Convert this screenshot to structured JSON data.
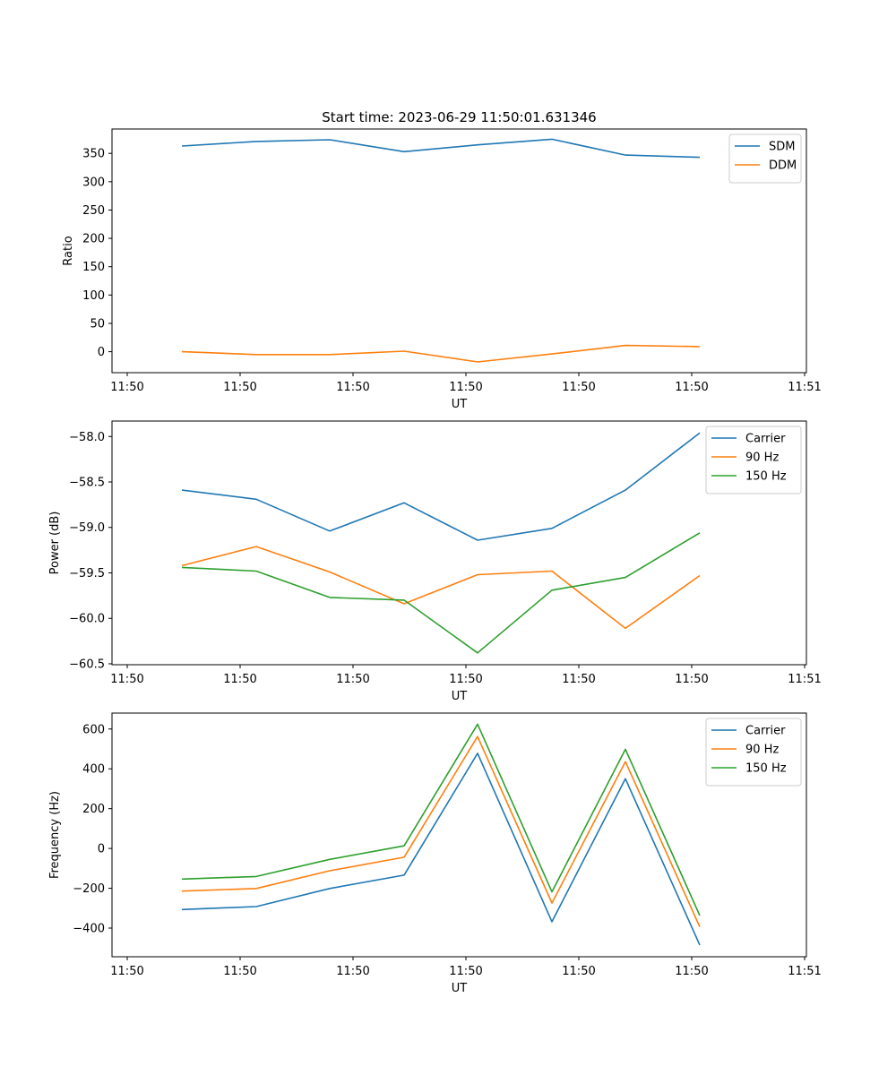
{
  "title": "Start time: 2023-06-29 11:50:01.631346",
  "colors": {
    "blue": "#1f77b4",
    "orange": "#ff7f0e",
    "green": "#2ca02c"
  },
  "chart_data": [
    {
      "type": "line",
      "title": "Start time: 2023-06-29 11:50:01.631346",
      "xlabel": "UT",
      "ylabel": "Ratio",
      "xtick_labels": [
        "11:50",
        "11:50",
        "11:50",
        "11:50",
        "11:50",
        "11:50",
        "11:50",
        "11:51"
      ],
      "ytick_values": [
        0,
        50,
        100,
        150,
        200,
        250,
        300,
        350
      ],
      "ytick_labels": [
        "0",
        "50",
        "100",
        "150",
        "200",
        "250",
        "300",
        "350"
      ],
      "ylim": [
        -37,
        393
      ],
      "legend_position": "upper right",
      "grid": false,
      "series": [
        {
          "name": "SDM",
          "color": "#1f77b4",
          "values": [
            363,
            371,
            374,
            353,
            365,
            375,
            347,
            343
          ]
        },
        {
          "name": "DDM",
          "color": "#ff7f0e",
          "values": [
            0,
            -5,
            -5,
            1,
            -18,
            -4,
            11,
            9
          ]
        }
      ]
    },
    {
      "type": "line",
      "title": "",
      "xlabel": "UT",
      "ylabel": "Power (dB)",
      "xtick_labels": [
        "11:50",
        "11:50",
        "11:50",
        "11:50",
        "11:50",
        "11:50",
        "11:50",
        "11:51"
      ],
      "ytick_values": [
        -58.0,
        -58.5,
        -59.0,
        -59.5,
        -60.0,
        -60.5
      ],
      "ytick_labels": [
        "−58.0",
        "−58.5",
        "−59.0",
        "−59.5",
        "−60.0",
        "−60.5"
      ],
      "ylim": [
        -60.51,
        -57.83
      ],
      "legend_position": "upper right",
      "grid": false,
      "series": [
        {
          "name": "Carrier",
          "color": "#1f77b4",
          "values": [
            -58.59,
            -58.69,
            -59.04,
            -58.73,
            -59.14,
            -59.01,
            -58.59,
            -57.96
          ]
        },
        {
          "name": "90 Hz",
          "color": "#ff7f0e",
          "values": [
            -59.42,
            -59.21,
            -59.49,
            -59.84,
            -59.52,
            -59.48,
            -60.11,
            -59.53
          ]
        },
        {
          "name": "150 Hz",
          "color": "#2ca02c",
          "values": [
            -59.44,
            -59.48,
            -59.77,
            -59.8,
            -60.38,
            -59.69,
            -59.55,
            -59.06
          ]
        }
      ]
    },
    {
      "type": "line",
      "title": "",
      "xlabel": "UT",
      "ylabel": "Frequency (Hz)",
      "xtick_labels": [
        "11:50",
        "11:50",
        "11:50",
        "11:50",
        "11:50",
        "11:50",
        "11:50",
        "11:51"
      ],
      "ytick_values": [
        600,
        400,
        200,
        0,
        -200,
        -400
      ],
      "ytick_labels": [
        "600",
        "400",
        "200",
        "0",
        "−200",
        "−400"
      ],
      "ylim": [
        -544,
        680
      ],
      "legend_position": "upper right",
      "grid": false,
      "series": [
        {
          "name": "Carrier",
          "color": "#1f77b4",
          "values": [
            -307,
            -292,
            -201,
            -134,
            478,
            -368,
            350,
            -485
          ]
        },
        {
          "name": "90 Hz",
          "color": "#ff7f0e",
          "values": [
            -214,
            -201,
            -112,
            -44,
            562,
            -274,
            436,
            -394
          ]
        },
        {
          "name": "150 Hz",
          "color": "#2ca02c",
          "values": [
            -154,
            -141,
            -55,
            13,
            624,
            -218,
            498,
            -337
          ]
        }
      ]
    }
  ]
}
